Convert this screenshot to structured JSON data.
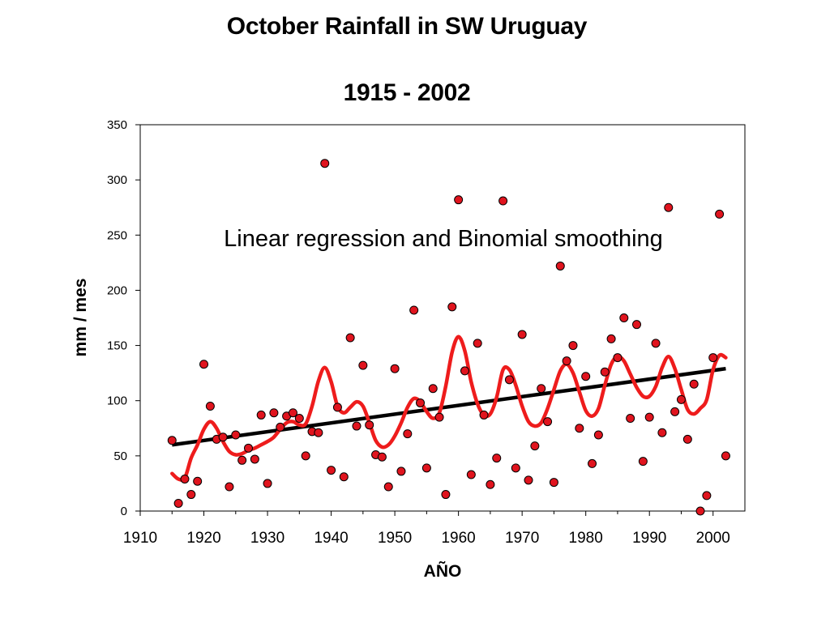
{
  "chart_data": {
    "type": "scatter",
    "title": "October Rainfall in SW Uruguay",
    "subtitle": "1915 - 2002",
    "xlabel": "AÑO",
    "ylabel": "mm / mes",
    "annotation": "Linear regression and Binomial smoothing",
    "xlim": [
      1910,
      2005
    ],
    "ylim": [
      0,
      350
    ],
    "xticks": [
      1910,
      1920,
      1930,
      1940,
      1950,
      1960,
      1970,
      1980,
      1990,
      2000
    ],
    "yticks": [
      0,
      50,
      100,
      150,
      200,
      250,
      300,
      350
    ],
    "grid": false,
    "legend": "none",
    "colors": {
      "points": "#e0141e",
      "smoothing": "#ee1c1c",
      "regression": "#000000"
    },
    "series": [
      {
        "type": "scatter",
        "x": [
          1915,
          1916,
          1917,
          1918,
          1919,
          1920,
          1921,
          1922,
          1923,
          1924,
          1925,
          1926,
          1927,
          1928,
          1929,
          1930,
          1931,
          1932,
          1933,
          1934,
          1935,
          1936,
          1937,
          1938,
          1939,
          1940,
          1941,
          1942,
          1943,
          1944,
          1945,
          1946,
          1947,
          1948,
          1949,
          1950,
          1951,
          1952,
          1953,
          1954,
          1955,
          1956,
          1957,
          1958,
          1959,
          1960,
          1961,
          1962,
          1963,
          1964,
          1965,
          1966,
          1967,
          1968,
          1969,
          1970,
          1971,
          1972,
          1973,
          1974,
          1975,
          1976,
          1977,
          1978,
          1979,
          1980,
          1981,
          1982,
          1983,
          1984,
          1985,
          1986,
          1987,
          1988,
          1989,
          1990,
          1991,
          1992,
          1993,
          1994,
          1995,
          1996,
          1997,
          1998,
          1999,
          2000,
          2001,
          2002
        ],
        "y": [
          64,
          7,
          29,
          15,
          27,
          133,
          95,
          65,
          67,
          22,
          69,
          46,
          57,
          47,
          87,
          25,
          89,
          76,
          86,
          89,
          84,
          50,
          72,
          71,
          315,
          37,
          94,
          31,
          157,
          77,
          132,
          78,
          51,
          49,
          22,
          129,
          36,
          70,
          182,
          98,
          39,
          111,
          85,
          15,
          185,
          282,
          127,
          33,
          152,
          87,
          24,
          48,
          281,
          119,
          39,
          160,
          28,
          59,
          111,
          81,
          26,
          222,
          136,
          150,
          75,
          122,
          43,
          69,
          126,
          156,
          139,
          175,
          84,
          169,
          45,
          85,
          152,
          71,
          275,
          90,
          101,
          65,
          115,
          0,
          14,
          139,
          269,
          50
        ]
      },
      {
        "type": "line",
        "x": [
          1915,
          1916,
          1917,
          1918,
          1919,
          1920,
          1921,
          1922,
          1923,
          1924,
          1925,
          1926,
          1927,
          1928,
          1929,
          1930,
          1931,
          1932,
          1933,
          1934,
          1935,
          1936,
          1937,
          1938,
          1939,
          1940,
          1941,
          1942,
          1943,
          1944,
          1945,
          1946,
          1947,
          1948,
          1949,
          1950,
          1951,
          1952,
          1953,
          1954,
          1955,
          1956,
          1957,
          1958,
          1959,
          1960,
          1961,
          1962,
          1963,
          1964,
          1965,
          1966,
          1967,
          1968,
          1969,
          1970,
          1971,
          1972,
          1973,
          1974,
          1975,
          1976,
          1977,
          1978,
          1979,
          1980,
          1981,
          1982,
          1983,
          1984,
          1985,
          1986,
          1987,
          1988,
          1989,
          1990,
          1991,
          1992,
          1993,
          1994,
          1995,
          1996,
          1997,
          1998,
          1999,
          2000,
          2001,
          2002
        ],
        "y": [
          34,
          29,
          30,
          48,
          60,
          74,
          81,
          75,
          63,
          54,
          51,
          52,
          55,
          57,
          60,
          63,
          67,
          74,
          80,
          81,
          78,
          79,
          95,
          118,
          130,
          117,
          95,
          89,
          94,
          99,
          95,
          80,
          64,
          58,
          60,
          68,
          80,
          94,
          102,
          99,
          90,
          84,
          89,
          113,
          144,
          158,
          145,
          117,
          97,
          87,
          88,
          103,
          128,
          128,
          114,
          95,
          81,
          77,
          80,
          93,
          110,
          127,
          133,
          125,
          108,
          91,
          86,
          93,
          114,
          133,
          140,
          136,
          124,
          112,
          104,
          104,
          113,
          130,
          140,
          129,
          110,
          92,
          88,
          93,
          101,
          128,
          141,
          139
        ]
      },
      {
        "type": "line",
        "x": [
          1915,
          2002
        ],
        "y": [
          60,
          129
        ]
      }
    ]
  }
}
